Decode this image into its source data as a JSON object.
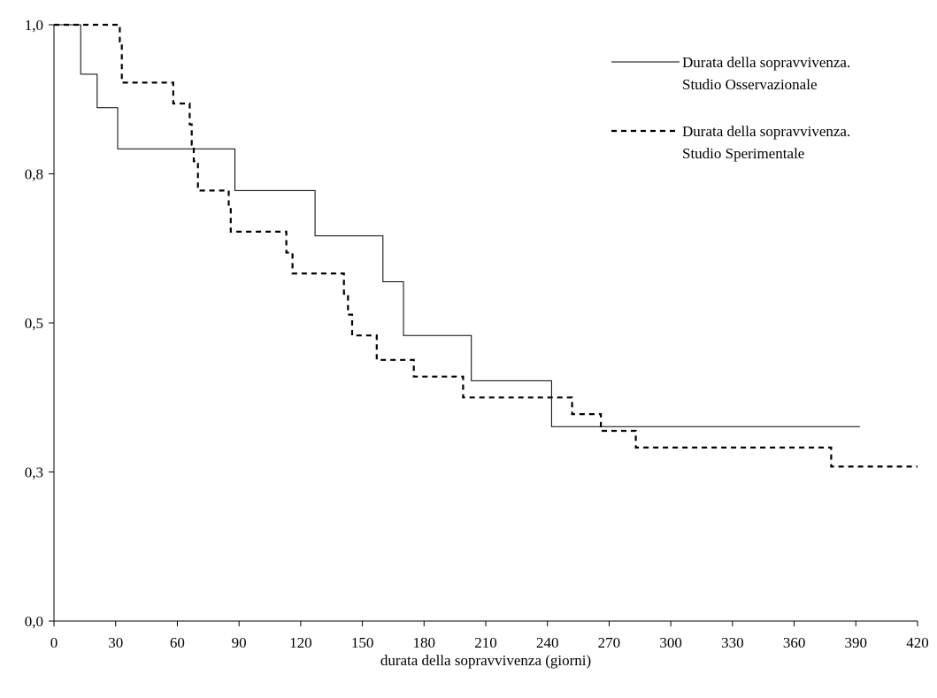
{
  "chart_data": {
    "type": "line",
    "title": "",
    "xlabel": "durata della sopravvivenza (giorni)",
    "ylabel": "",
    "xlim": [
      0,
      420
    ],
    "ylim": [
      0,
      1
    ],
    "x_ticks": [
      0,
      30,
      60,
      90,
      120,
      150,
      180,
      210,
      240,
      270,
      300,
      330,
      360,
      390,
      420
    ],
    "y_ticks": [
      0,
      0.25,
      0.5,
      0.75,
      1.0
    ],
    "y_tick_labels": [
      "0,0",
      "0,3",
      "0,5",
      "0,8",
      "1,0"
    ],
    "grid": false,
    "legend_position": "top-right",
    "series": [
      {
        "name": "Durata della sopravvivenza.\nStudio Osservazionale",
        "legend_lines": [
          "Durata della sopravvivenza.",
          "Studio Osservazionale"
        ],
        "style": "solid",
        "color": "#000000",
        "x": [
          0,
          13,
          13,
          21,
          21,
          31,
          31,
          88,
          88,
          127,
          127,
          160,
          160,
          170,
          170,
          203,
          203,
          242,
          242,
          392
        ],
        "y": [
          1.0,
          1.0,
          0.917,
          0.917,
          0.861,
          0.861,
          0.792,
          0.792,
          0.722,
          0.722,
          0.646,
          0.646,
          0.569,
          0.569,
          0.479,
          0.479,
          0.403,
          0.403,
          0.326,
          0.326
        ]
      },
      {
        "name": "Durata della sopravvivenza.\nStudio Sperimentale",
        "legend_lines": [
          "Durata della sopravvivenza.",
          "Studio Sperimentale"
        ],
        "style": "dashed",
        "color": "#000000",
        "x": [
          0,
          32,
          32,
          33,
          33,
          58,
          58,
          66,
          66,
          67,
          67,
          68,
          68,
          70,
          70,
          85,
          85,
          86,
          86,
          113,
          113,
          116,
          116,
          141,
          141,
          143,
          143,
          145,
          145,
          157,
          157,
          175,
          175,
          199,
          199,
          252,
          252,
          266,
          266,
          283,
          283,
          378,
          378,
          420
        ],
        "y": [
          1.0,
          1.0,
          0.972,
          0.972,
          0.903,
          0.903,
          0.868,
          0.868,
          0.833,
          0.833,
          0.799,
          0.799,
          0.771,
          0.771,
          0.722,
          0.722,
          0.694,
          0.694,
          0.653,
          0.653,
          0.618,
          0.618,
          0.583,
          0.583,
          0.549,
          0.549,
          0.514,
          0.514,
          0.479,
          0.479,
          0.438,
          0.438,
          0.41,
          0.41,
          0.375,
          0.375,
          0.347,
          0.347,
          0.319,
          0.319,
          0.291,
          0.291,
          0.259,
          0.259
        ]
      }
    ]
  }
}
